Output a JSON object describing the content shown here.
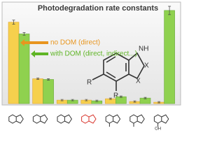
{
  "chart_data": {
    "type": "bar",
    "title": "Photodegradation rate constants",
    "categories": [
      null,
      null,
      null,
      null,
      null,
      null,
      null
    ],
    "series": [
      {
        "name": "no DOM (direct)",
        "color": "#f6d04d",
        "text_color": "#e8951e",
        "values": [
          118,
          36,
          5,
          5,
          7,
          3,
          2
        ],
        "errors": [
          3,
          1,
          1,
          1,
          1,
          1,
          1
        ]
      },
      {
        "name": "with DOM (direct, indirect...)",
        "color": "#8fd14f",
        "text_color": "#5fb526",
        "values": [
          101,
          35,
          5,
          4,
          10,
          8,
          135
        ],
        "errors": [
          2,
          1,
          1,
          1,
          1,
          1,
          6
        ]
      }
    ],
    "ylim": [
      0,
      140
    ],
    "annotations": [
      "NH",
      "X",
      "X",
      "R",
      "R",
      "OH"
    ]
  }
}
